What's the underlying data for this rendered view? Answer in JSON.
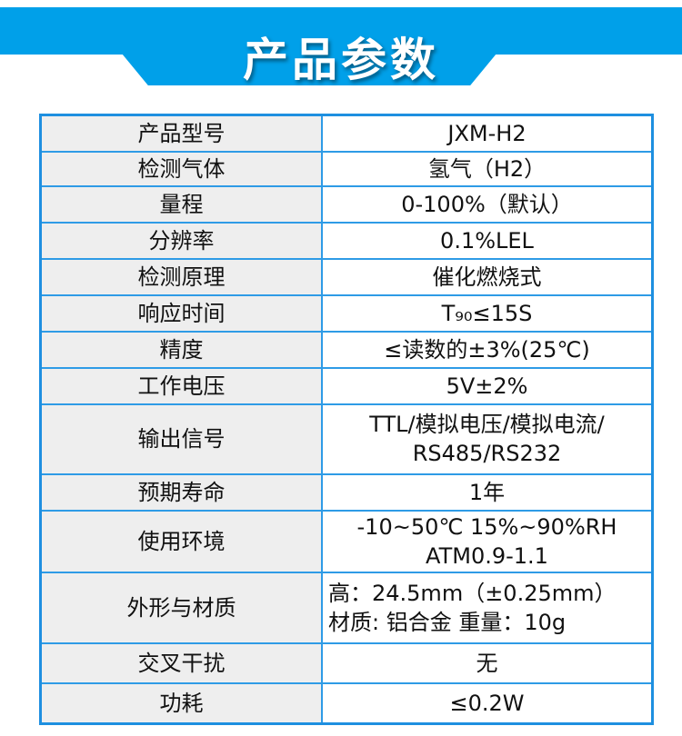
{
  "header": {
    "title": "产品参数",
    "color": "#00a0e9"
  },
  "rows": [
    {
      "label": "产品型号",
      "value": [
        "JXM-H2"
      ]
    },
    {
      "label": "检测气体",
      "value": [
        "氢气（H2）"
      ]
    },
    {
      "label": "量程",
      "value": [
        "0-100%（默认）"
      ]
    },
    {
      "label": "分辨率",
      "value": [
        "0.1%LEL"
      ]
    },
    {
      "label": "检测原理",
      "value": [
        "催化燃烧式"
      ]
    },
    {
      "label": "响应时间",
      "value": [
        "T₉₀≤15S"
      ]
    },
    {
      "label": "精度",
      "value": [
        "≤读数的±3%(25℃)"
      ]
    },
    {
      "label": "工作电压",
      "value": [
        "5V±2%"
      ]
    },
    {
      "label": "输出信号",
      "value": [
        "TTL/模拟电压/模拟电流/",
        "RS485/RS232"
      ]
    },
    {
      "label": "预期寿命",
      "value": [
        "1年"
      ]
    },
    {
      "label": "使用环境",
      "value": [
        "-10~50℃ 15%~90%RH",
        "ATM0.9-1.1"
      ]
    },
    {
      "label": "外形与材质",
      "value": [
        "高：24.5mm（±0.25mm）",
        "材质: 铝合金  重量：10g"
      ]
    },
    {
      "label": "交叉干扰",
      "value": [
        "无"
      ]
    },
    {
      "label": "功耗",
      "value": [
        "≤0.2W"
      ]
    }
  ]
}
